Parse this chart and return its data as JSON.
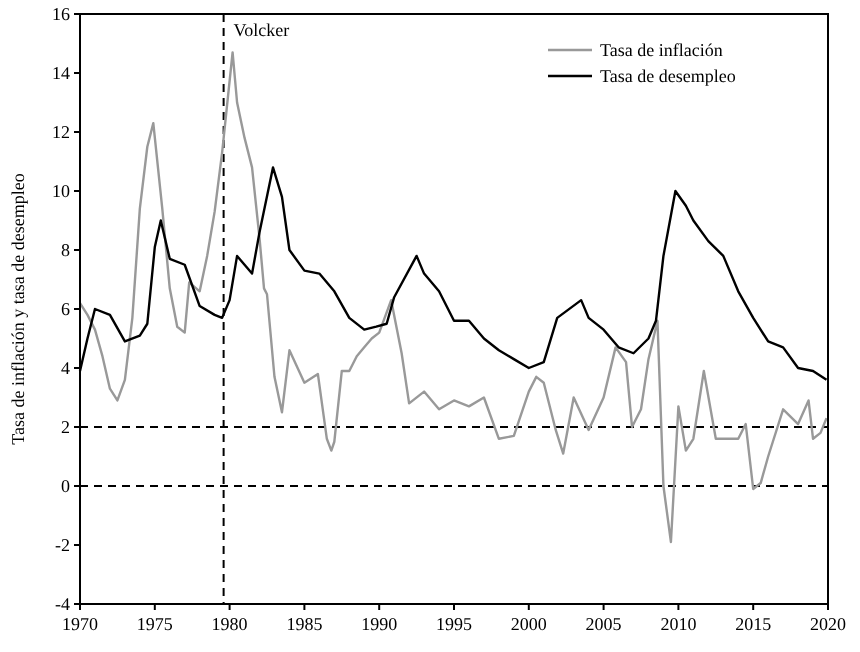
{
  "chart_data": {
    "type": "line",
    "ylabel": "Tasa de inflación y tasa de desempleo",
    "xlim": [
      1970,
      2020
    ],
    "xticks": [
      1970,
      1975,
      1980,
      1985,
      1990,
      1995,
      2000,
      2005,
      2010,
      2015,
      2020
    ],
    "ylim": [
      -4,
      16
    ],
    "yticks": [
      -4,
      -2,
      0,
      2,
      4,
      6,
      8,
      10,
      12,
      14,
      16
    ],
    "grid": false,
    "legend": "top right",
    "line_style": "solid",
    "marker": "none",
    "ref_lines": [
      {
        "axis": "x",
        "value": 1979.6,
        "label": "Volcker",
        "line_style": "dashed",
        "color": "#000000"
      },
      {
        "axis": "y",
        "value": 2,
        "label": null,
        "line_style": "dashed",
        "color": "#000000"
      },
      {
        "axis": "y",
        "value": 0,
        "label": null,
        "line_style": "dashed",
        "color": "#000000"
      }
    ],
    "series": [
      {
        "name": "Tasa de inflación",
        "color": "#999999",
        "x": [
          1970,
          1970.5,
          1971,
          1971.5,
          1972,
          1972.5,
          1973,
          1973.5,
          1974,
          1974.5,
          1974.9,
          1975.5,
          1976,
          1976.5,
          1977,
          1977.3,
          1978,
          1978.5,
          1979,
          1979.5,
          1980.2,
          1980.5,
          1981,
          1981.5,
          1982,
          1982.3,
          1982.5,
          1983,
          1983.5,
          1984,
          1985,
          1985.9,
          1986.5,
          1986.8,
          1987,
          1987.5,
          1988,
          1988.5,
          1989,
          1989.5,
          1990,
          1990.8,
          1991.5,
          1992,
          1993,
          1994,
          1995,
          1996,
          1997,
          1998,
          1999,
          2000,
          2000.5,
          2001,
          2001.8,
          2002.3,
          2003,
          2004,
          2005,
          2005.8,
          2006.5,
          2006.9,
          2007.5,
          2008,
          2008.6,
          2009,
          2009.5,
          2010,
          2010.5,
          2011,
          2011.7,
          2012.5,
          2013,
          2014,
          2014.5,
          2015,
          2015.5,
          2016,
          2017,
          2018,
          2018.7,
          2019,
          2019.5,
          2019.9
        ],
        "values": [
          6.2,
          5.8,
          5.3,
          4.4,
          3.3,
          2.9,
          3.6,
          5.7,
          9.4,
          11.5,
          12.3,
          9.4,
          6.7,
          5.4,
          5.2,
          6.9,
          6.6,
          7.8,
          9.3,
          11.3,
          14.7,
          13.0,
          11.8,
          10.8,
          8.4,
          6.7,
          6.5,
          3.7,
          2.5,
          4.6,
          3.5,
          3.8,
          1.6,
          1.2,
          1.5,
          3.9,
          3.9,
          4.4,
          4.7,
          5.0,
          5.2,
          6.3,
          4.5,
          2.8,
          3.2,
          2.6,
          2.9,
          2.7,
          3.0,
          1.6,
          1.7,
          3.2,
          3.7,
          3.5,
          1.9,
          1.1,
          3.0,
          1.9,
          3.0,
          4.7,
          4.2,
          2.0,
          2.6,
          4.3,
          5.6,
          0.0,
          -1.9,
          2.7,
          1.2,
          1.6,
          3.9,
          1.6,
          1.6,
          1.6,
          2.1,
          -0.1,
          0.1,
          1.0,
          2.6,
          2.1,
          2.9,
          1.6,
          1.8,
          2.3
        ]
      },
      {
        "name": "Tasa de desempleo",
        "color": "#000000",
        "x": [
          1970,
          1970.5,
          1971,
          1972,
          1973,
          1974,
          1974.5,
          1975,
          1975.4,
          1976,
          1977,
          1978,
          1979,
          1979.5,
          1980,
          1980.5,
          1981,
          1981.5,
          1982,
          1982.9,
          1983.5,
          1984,
          1985,
          1986,
          1987,
          1988,
          1989,
          1989.8,
          1990.5,
          1991,
          1992.5,
          1993,
          1994,
          1995,
          1996,
          1997,
          1998,
          1999,
          2000,
          2001,
          2001.9,
          2003.5,
          2004,
          2005,
          2006,
          2007,
          2008,
          2008.5,
          2009,
          2009.8,
          2010.5,
          2011,
          2012,
          2013,
          2014,
          2015,
          2016,
          2017,
          2018,
          2019,
          2019.9
        ],
        "values": [
          3.9,
          5.0,
          6.0,
          5.8,
          4.9,
          5.1,
          5.5,
          8.1,
          9.0,
          7.7,
          7.5,
          6.1,
          5.8,
          5.7,
          6.3,
          7.8,
          7.5,
          7.2,
          8.6,
          10.8,
          9.8,
          8.0,
          7.3,
          7.2,
          6.6,
          5.7,
          5.3,
          5.4,
          5.5,
          6.4,
          7.8,
          7.2,
          6.6,
          5.6,
          5.6,
          5.0,
          4.6,
          4.3,
          4.0,
          4.2,
          5.7,
          6.3,
          5.7,
          5.3,
          4.7,
          4.5,
          5.0,
          5.6,
          7.8,
          10.0,
          9.5,
          9.0,
          8.3,
          7.8,
          6.6,
          5.7,
          4.9,
          4.7,
          4.0,
          3.9,
          3.6
        ]
      }
    ]
  }
}
